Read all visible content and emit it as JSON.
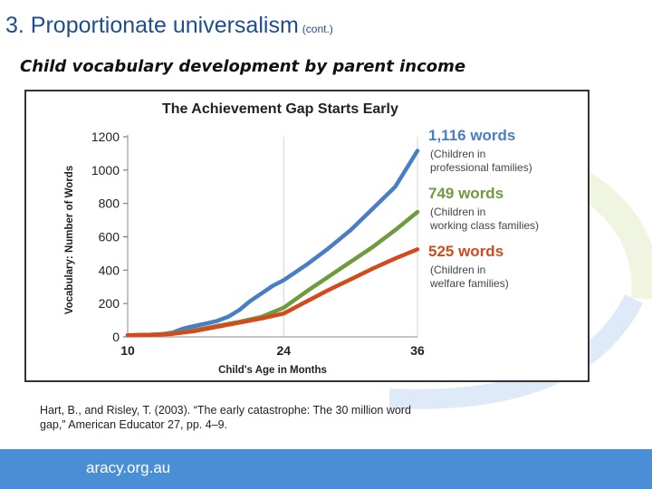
{
  "slide": {
    "title": "3. Proportionate universalism",
    "title_suffix": "(cont.)",
    "subtitle": "Child vocabulary development by parent income",
    "citation_line1": "Hart, B., and Risley, T. (2003). “The early catastrophe: The 30 million word",
    "citation_line2": "gap,” American Educator 27, pp. 4–9.",
    "footer_url": "aracy.org.au"
  },
  "colors": {
    "title": "#1f4e8c",
    "footer": "#4a8fd6",
    "professional": "#4a7ec4",
    "working": "#6f9a3e",
    "welfare": "#d24a1e"
  },
  "chart_data": {
    "type": "line",
    "title": "The Achievement Gap Starts Early",
    "xlabel": "Child's Age in Months",
    "ylabel": "Vocabulary: Number of Words",
    "xlim": [
      10,
      36
    ],
    "ylim": [
      0,
      1200
    ],
    "xticks": [
      10,
      24,
      36
    ],
    "yticks": [
      0,
      200,
      400,
      600,
      800,
      1000,
      1200
    ],
    "grid": "vertical",
    "series": [
      {
        "key": "professional",
        "value_label": "1,116 words",
        "desc_line1": "(Children in",
        "desc_line2": "professional families)",
        "x": [
          10,
          12,
          13,
          14,
          15,
          16,
          17,
          18,
          19,
          20,
          21,
          22,
          23,
          24,
          26,
          28,
          30,
          32,
          34,
          36
        ],
        "y": [
          10,
          12,
          15,
          25,
          50,
          65,
          80,
          95,
          120,
          160,
          215,
          260,
          305,
          340,
          430,
          530,
          640,
          770,
          900,
          1116
        ]
      },
      {
        "key": "working",
        "value_label": "749 words",
        "desc_line1": "(Children in",
        "desc_line2": "working class families)",
        "x": [
          10,
          12,
          14,
          16,
          18,
          20,
          22,
          24,
          26,
          28,
          30,
          32,
          34,
          36
        ],
        "y": [
          10,
          12,
          20,
          40,
          65,
          90,
          120,
          175,
          270,
          360,
          450,
          540,
          640,
          749
        ]
      },
      {
        "key": "welfare",
        "value_label": "525 words",
        "desc_line1": "(Children in",
        "desc_line2": "welfare families)",
        "x": [
          10,
          12,
          14,
          16,
          18,
          20,
          22,
          24,
          26,
          28,
          30,
          32,
          34,
          36
        ],
        "y": [
          10,
          12,
          18,
          35,
          60,
          85,
          110,
          140,
          210,
          280,
          345,
          410,
          470,
          525
        ]
      }
    ]
  }
}
